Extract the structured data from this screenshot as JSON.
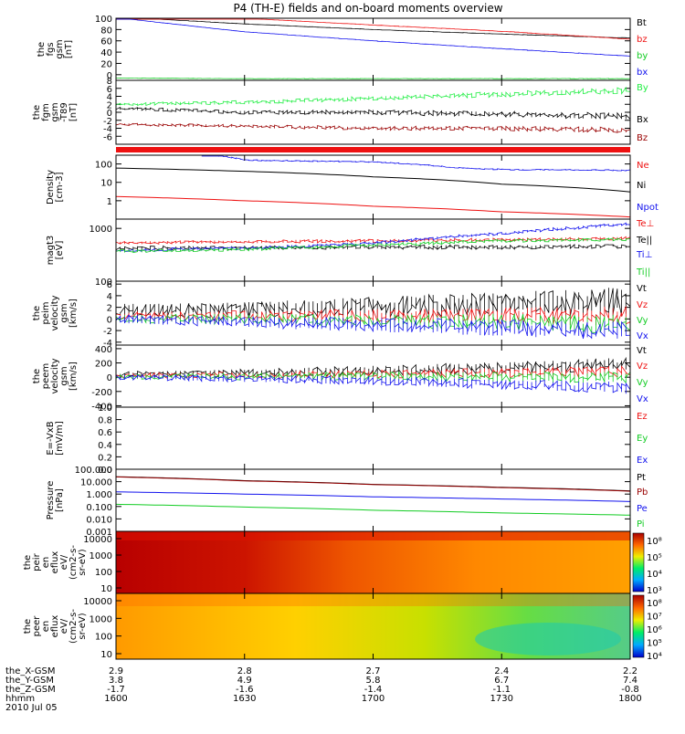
{
  "title": "P4 (TH-E) fields and on-board moments overview",
  "colors": {
    "black": "#000000",
    "red": "#ee1111",
    "blue": "#1111ee",
    "green": "#11cc22",
    "brightgreen": "#22ee44",
    "darkred": "#990000"
  },
  "chart_data": [
    {
      "type": "line",
      "ylabel": [
        "the",
        "fgs",
        "gsm",
        "[nT]"
      ],
      "yticks": [
        "100",
        "80",
        "60",
        "40",
        "20",
        "0"
      ],
      "ylim": [
        -10,
        100
      ],
      "legend": [
        "Bt",
        "bz",
        "by",
        "bx"
      ],
      "series": [
        {
          "name": "Bt",
          "color": "black",
          "x": [
            1600,
            1606,
            1630,
            1700,
            1730,
            1800
          ],
          "values": [
            103,
            100,
            90,
            80,
            72,
            65
          ]
        },
        {
          "name": "bz",
          "color": "red",
          "x": [
            1600,
            1630,
            1700,
            1730,
            1800
          ],
          "values": [
            103,
            100,
            88,
            77,
            63
          ]
        },
        {
          "name": "by",
          "color": "green",
          "x": [
            1600,
            1630,
            1700,
            1730,
            1800
          ],
          "values": [
            -6,
            -7,
            -7,
            -7,
            -7
          ]
        },
        {
          "name": "bx",
          "color": "blue",
          "x": [
            1600,
            1630,
            1700,
            1730,
            1800
          ],
          "values": [
            101,
            76,
            60,
            46,
            33
          ]
        }
      ]
    },
    {
      "type": "line",
      "ylabel": [
        "the",
        "fgm",
        "gsm",
        "-T89",
        "[nT]"
      ],
      "yticks": [
        "8",
        "6",
        "4",
        "2",
        "0",
        "-2",
        "-4",
        "-6"
      ],
      "ylim": [
        -8,
        8
      ],
      "legend": [
        "By",
        "Bx",
        "Bz"
      ],
      "series": [
        {
          "name": "By",
          "color": "brightgreen",
          "x": [
            1600,
            1630,
            1700,
            1730,
            1800
          ],
          "values": [
            2,
            2.5,
            3.5,
            4.5,
            5.5
          ]
        },
        {
          "name": "Bx",
          "color": "black",
          "x": [
            1600,
            1630,
            1700,
            1730,
            1800
          ],
          "values": [
            1,
            0,
            0,
            -0.5,
            -1
          ]
        },
        {
          "name": "Bz",
          "color": "darkred",
          "x": [
            1600,
            1630,
            1700,
            1730,
            1800
          ],
          "values": [
            -3,
            -3.5,
            -4,
            -4,
            -4.5
          ]
        }
      ]
    },
    {
      "type": "line",
      "ylabel": [
        "Density",
        "[cm-3]"
      ],
      "yticks": [
        "100",
        "10",
        "1"
      ],
      "ylim": [
        0.1,
        300
      ],
      "scale": "log",
      "legend": [
        "Ne",
        "Ni",
        "Npot"
      ],
      "series": [
        {
          "name": "Ni",
          "color": "black",
          "x": [
            1600,
            1630,
            1700,
            1730,
            1800
          ],
          "values": [
            60,
            40,
            20,
            8,
            3
          ]
        },
        {
          "name": "Ne",
          "color": "red",
          "x": [
            1600,
            1630,
            1700,
            1730,
            1800
          ],
          "values": [
            1.7,
            1.0,
            0.5,
            0.25,
            0.13
          ]
        },
        {
          "name": "Npot",
          "color": "blue",
          "x": [
            1620,
            1626,
            1630,
            1700,
            1720,
            1730,
            1800
          ],
          "values": [
            300,
            250,
            160,
            130,
            60,
            50,
            45
          ]
        }
      ]
    },
    {
      "type": "line",
      "ylabel": [
        "magt3",
        "[eV]"
      ],
      "yticks": [
        "1000",
        "100"
      ],
      "ylim": [
        100,
        1500
      ],
      "scale": "log",
      "legend": [
        "Te⊥",
        "Te||",
        "Ti⊥",
        "Ti||"
      ],
      "series": [
        {
          "name": "Te⊥",
          "color": "red",
          "x": [
            1600,
            1630,
            1700,
            1730,
            1800
          ],
          "values": [
            530,
            560,
            580,
            610,
            650
          ]
        },
        {
          "name": "Te||",
          "color": "black",
          "x": [
            1600,
            1630,
            1700,
            1730,
            1800
          ],
          "values": [
            420,
            430,
            440,
            440,
            460
          ]
        },
        {
          "name": "Ti⊥",
          "color": "blue",
          "x": [
            1600,
            1630,
            1700,
            1730,
            1800
          ],
          "values": [
            380,
            420,
            520,
            800,
            1200
          ]
        },
        {
          "name": "Ti||",
          "color": "green",
          "x": [
            1600,
            1630,
            1700,
            1730,
            1800
          ],
          "values": [
            370,
            400,
            480,
            580,
            620
          ]
        }
      ]
    },
    {
      "type": "line",
      "ylabel": [
        "the",
        "peim",
        "velocity",
        "gsm",
        "[km/s]"
      ],
      "yticks": [
        "6",
        "4",
        "2",
        "0",
        "-2",
        "-4"
      ],
      "ylim": [
        -4.5,
        6.5
      ],
      "legend": [
        "Vt",
        "Vz",
        "Vy",
        "Vx"
      ],
      "series": [
        {
          "name": "Vt",
          "color": "black",
          "x": [
            1600,
            1630,
            1700,
            1730,
            1800
          ],
          "values": [
            1.5,
            1.5,
            2,
            2.5,
            3
          ]
        },
        {
          "name": "Vz",
          "color": "red",
          "x": [
            1600,
            1630,
            1700,
            1730,
            1800
          ],
          "values": [
            0.5,
            0.5,
            0.5,
            0.5,
            0.5
          ]
        },
        {
          "name": "Vy",
          "color": "green",
          "x": [
            1600,
            1630,
            1700,
            1730,
            1800
          ],
          "values": [
            0,
            0,
            -0.5,
            -0.5,
            -1
          ]
        },
        {
          "name": "Vx",
          "color": "blue",
          "x": [
            1600,
            1630,
            1700,
            1730,
            1800
          ],
          "values": [
            0,
            -0.5,
            -1,
            -1.5,
            -2
          ]
        }
      ]
    },
    {
      "type": "line",
      "ylabel": [
        "the",
        "peem",
        "velocity",
        "gsm",
        "[km/s]"
      ],
      "yticks": [
        "400",
        "200",
        "0",
        "-200",
        "-400"
      ],
      "ylim": [
        -420,
        450
      ],
      "legend": [
        "Vt",
        "Vz",
        "Vy",
        "Vx"
      ],
      "series": [
        {
          "name": "Vt",
          "color": "black",
          "x": [
            1600,
            1630,
            1700,
            1730,
            1800
          ],
          "values": [
            40,
            60,
            90,
            130,
            180
          ]
        },
        {
          "name": "Vz",
          "color": "red",
          "x": [
            1600,
            1630,
            1700,
            1730,
            1800
          ],
          "values": [
            20,
            30,
            40,
            60,
            80
          ]
        },
        {
          "name": "Vy",
          "color": "green",
          "x": [
            1600,
            1630,
            1700,
            1730,
            1800
          ],
          "values": [
            10,
            10,
            10,
            0,
            0
          ]
        },
        {
          "name": "Vx",
          "color": "blue",
          "x": [
            1600,
            1630,
            1700,
            1730,
            1800
          ],
          "values": [
            0,
            -20,
            -50,
            -100,
            -150
          ]
        }
      ]
    },
    {
      "type": "line",
      "ylabel": [
        "E=-VxB",
        "[mV/m]"
      ],
      "yticks": [
        "1.0",
        "0.8",
        "0.6",
        "0.4",
        "0.2",
        "0.0"
      ],
      "ylim": [
        0,
        1
      ],
      "legend": [
        "Ez",
        "Ey",
        "Ex"
      ],
      "series": []
    },
    {
      "type": "line",
      "ylabel": [
        "Pressure",
        "[nPa]"
      ],
      "yticks": [
        "100.000",
        "10.000",
        "1.000",
        "0.100",
        "0.010",
        "0.001"
      ],
      "ylim": [
        0.001,
        100
      ],
      "scale": "log",
      "legend": [
        "Pt",
        "Pb",
        "Pe",
        "Pi"
      ],
      "series": [
        {
          "name": "Pt",
          "color": "black",
          "x": [
            1600,
            1630,
            1700,
            1730,
            1800
          ],
          "values": [
            25,
            12,
            6,
            3.5,
            1.8
          ]
        },
        {
          "name": "Pb",
          "color": "darkred",
          "x": [
            1600,
            1630,
            1700,
            1730,
            1800
          ],
          "values": [
            24,
            11.5,
            5.8,
            3.3,
            1.7
          ]
        },
        {
          "name": "Pe",
          "color": "blue",
          "x": [
            1600,
            1630,
            1700,
            1730,
            1800
          ],
          "values": [
            1.5,
            1.0,
            0.6,
            0.4,
            0.25
          ]
        },
        {
          "name": "Pi",
          "color": "green",
          "x": [
            1600,
            1630,
            1700,
            1730,
            1800
          ],
          "values": [
            0.15,
            0.09,
            0.05,
            0.03,
            0.02
          ]
        }
      ]
    },
    {
      "type": "heatmap",
      "ylabel": [
        "the",
        "peir",
        "en",
        "eflux",
        "eV/",
        "(cm2-s-",
        "sr-eV)"
      ],
      "yticks": [
        "10000",
        "1000",
        "100",
        "10"
      ],
      "colorbar_ticks": [
        "10⁸",
        "10⁵",
        "10⁴",
        "10³"
      ]
    },
    {
      "type": "heatmap",
      "ylabel": [
        "the",
        "peer",
        "en",
        "eflux",
        "eV/",
        "(cm2-s-",
        "sr-eV)"
      ],
      "yticks": [
        "10000",
        "1000",
        "100",
        "10"
      ],
      "colorbar_ticks": [
        "10⁸",
        "10⁷",
        "10⁶",
        "10⁵",
        "10⁴"
      ]
    }
  ],
  "xaxis": {
    "rows": [
      {
        "label": "the_X-GSM",
        "values": [
          "2.9",
          "2.8",
          "2.7",
          "2.4",
          "2.2"
        ]
      },
      {
        "label": "the_Y-GSM",
        "values": [
          "3.8",
          "4.9",
          "5.8",
          "6.7",
          "7.4"
        ]
      },
      {
        "label": "the_Z-GSM",
        "values": [
          "-1.7",
          "-1.6",
          "-1.4",
          "-1.1",
          "-0.8"
        ]
      },
      {
        "label": "hhmm",
        "values": [
          "1600",
          "1630",
          "1700",
          "1730",
          "1800"
        ]
      }
    ],
    "date": "2010 Jul 05"
  }
}
